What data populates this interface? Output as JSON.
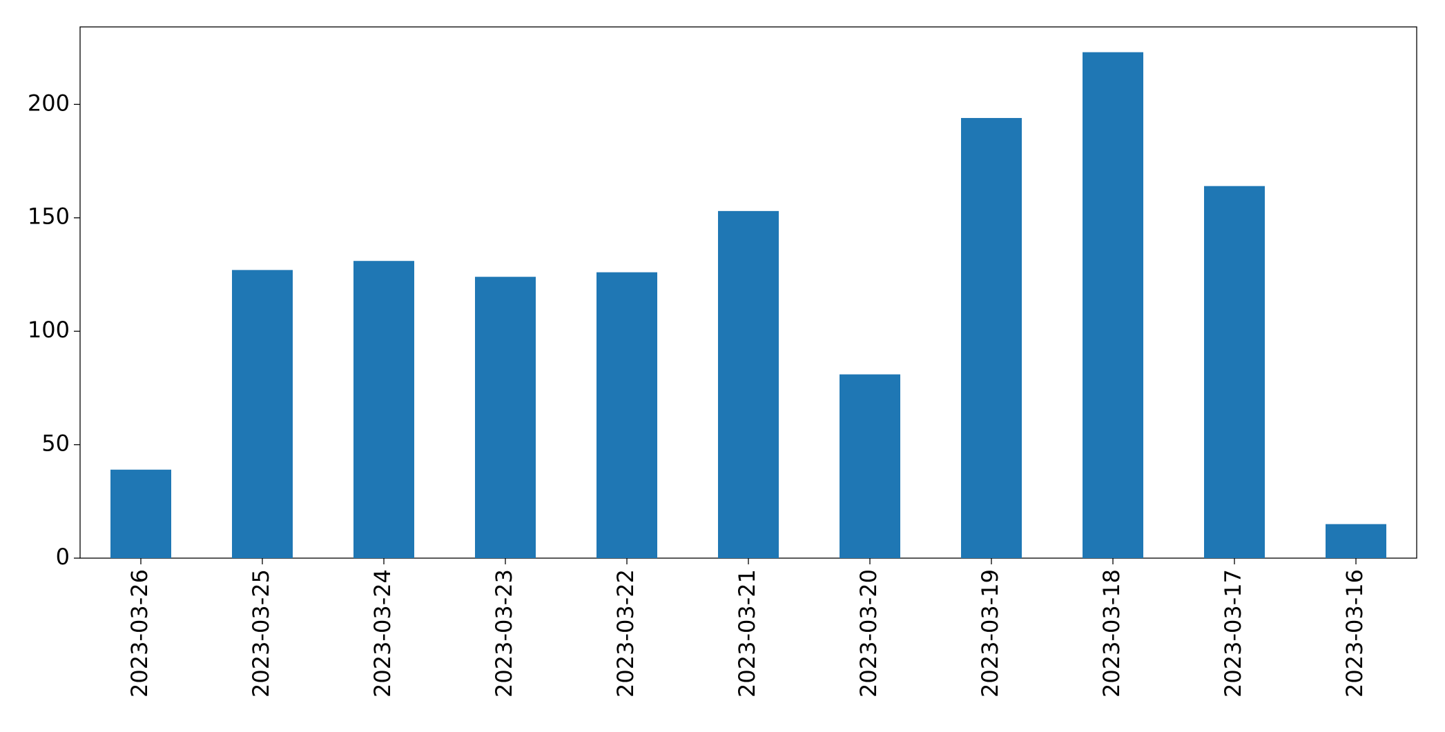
{
  "chart_data": {
    "type": "bar",
    "categories": [
      "2023-03-26",
      "2023-03-25",
      "2023-03-24",
      "2023-03-23",
      "2023-03-22",
      "2023-03-21",
      "2023-03-20",
      "2023-03-19",
      "2023-03-18",
      "2023-03-17",
      "2023-03-16"
    ],
    "values": [
      39,
      127,
      131,
      124,
      126,
      153,
      81,
      194,
      223,
      164,
      15
    ],
    "color": "#1f77b4",
    "ylim": [
      0,
      234.15
    ],
    "yticks": [
      0,
      50,
      100,
      150,
      200
    ],
    "grid": false
  }
}
